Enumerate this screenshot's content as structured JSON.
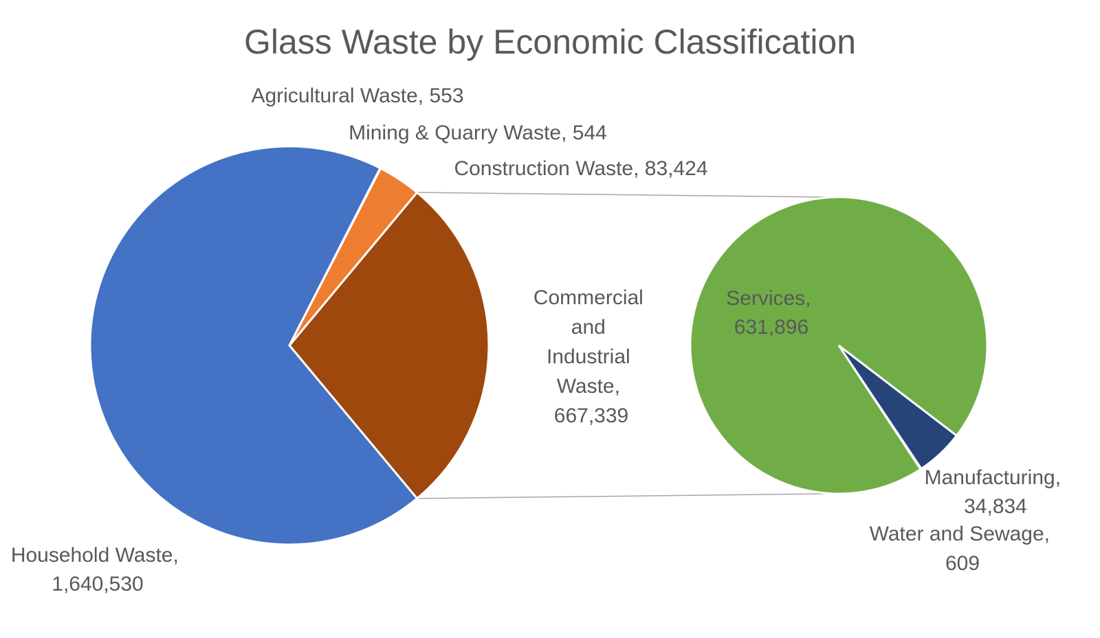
{
  "chart_data": {
    "type": "pie",
    "subtype": "pie-of-pie",
    "title": "Glass Waste by Economic Classification",
    "primary": {
      "slices": [
        {
          "name": "Household Waste",
          "value": "1,640,530",
          "color": "#4472C4"
        },
        {
          "name": "Agricultural Waste",
          "value": "553",
          "color": "#ED7D31"
        },
        {
          "name": "Mining & Quarry Waste",
          "value": "544",
          "color": "#A5A5A5"
        },
        {
          "name": "Construction Waste",
          "value": "83,424",
          "color": "#ED7D31"
        },
        {
          "name": "Commercial and Industrial Waste",
          "value": "667,339",
          "color": "#9E480E"
        }
      ]
    },
    "secondary": {
      "parent": "Commercial and Industrial Waste",
      "slices": [
        {
          "name": "Services",
          "value": "631,896",
          "color": "#70AD47"
        },
        {
          "name": "Manufacturing",
          "value": "34,834",
          "color": "#264478"
        },
        {
          "name": "Water and Sewage",
          "value": "609",
          "color": "#264478"
        }
      ]
    },
    "labels": {
      "household": [
        "Household Waste,",
        "1,640,530"
      ],
      "agricultural": [
        "Agricultural Waste, 553"
      ],
      "mining": [
        "Mining & Quarry Waste, 544"
      ],
      "construction": [
        "Construction Waste, 83,424"
      ],
      "commercial": [
        "Commercial",
        "and",
        "Industrial",
        "Waste,",
        "667,339"
      ],
      "services": [
        "Services,",
        "631,896"
      ],
      "manufacturing": [
        "Manufacturing,",
        "34,834"
      ],
      "water": [
        "Water and Sewage,",
        "609"
      ]
    }
  }
}
